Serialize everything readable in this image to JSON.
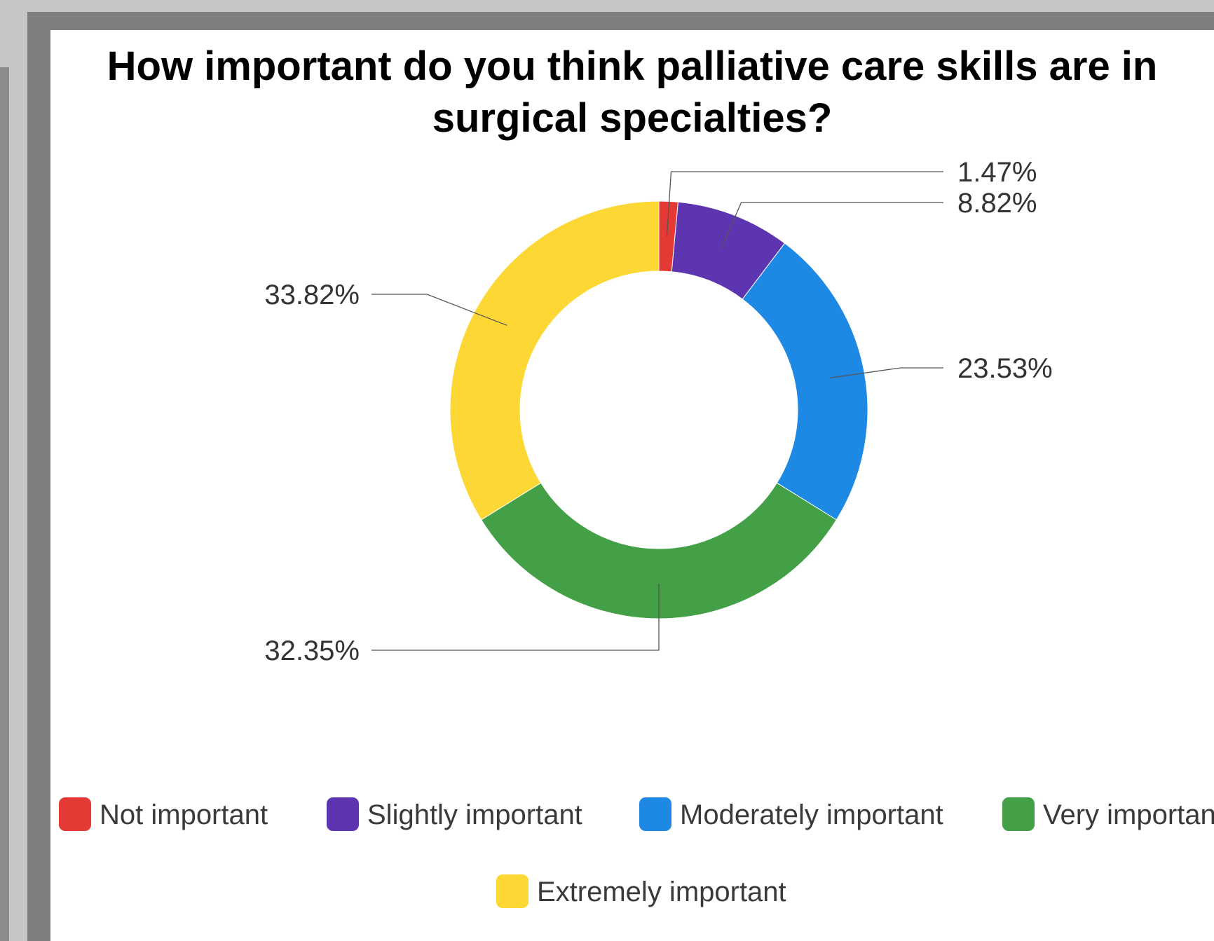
{
  "chart_data": {
    "type": "pie",
    "donut": true,
    "title": "How important do you think palliative care skills are in surgical specialties?",
    "categories": [
      "Not important",
      "Slightly important",
      "Moderately important",
      "Very important",
      "Extremely important"
    ],
    "values": [
      1.47,
      8.82,
      23.53,
      32.35,
      33.82
    ],
    "data_labels": [
      "1.47%",
      "8.82%",
      "23.53%",
      "32.35%",
      "33.82%"
    ],
    "colors": [
      "#e53935",
      "#5e35b1",
      "#1e88e5",
      "#43a047",
      "#fdd835"
    ],
    "legend": {
      "position": "bottom",
      "entries": [
        "Not important",
        "Slightly important",
        "Moderately important",
        "Very importan",
        "Extremely important"
      ]
    }
  }
}
